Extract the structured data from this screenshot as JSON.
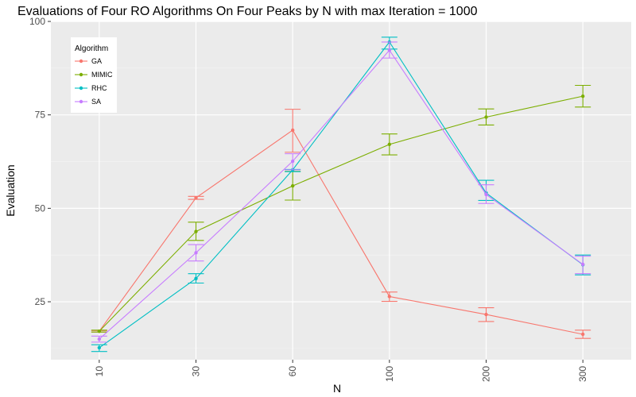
{
  "chart_data": {
    "type": "line",
    "title": "Evaluations of Four RO Algorithms On Four Peaks by N with max Iteration = 1000",
    "xlabel": "N",
    "ylabel": "Evaluation",
    "categories": [
      "10",
      "30",
      "60",
      "100",
      "200",
      "300"
    ],
    "ylim": [
      9.5,
      100
    ],
    "yticks": [
      25,
      50,
      75,
      100
    ],
    "legend": {
      "title": "Algorithm",
      "position": "top-left"
    },
    "series": [
      {
        "name": "GA",
        "color": "#F8766D",
        "values": [
          17.1,
          52.8,
          70.9,
          26.4,
          21.6,
          16.3
        ],
        "error_low": [
          16.9,
          52.4,
          65.0,
          25.1,
          19.7,
          15.2
        ],
        "error_high": [
          17.3,
          53.2,
          76.5,
          27.6,
          23.4,
          17.4
        ]
      },
      {
        "name": "MIMIC",
        "color": "#7CAE00",
        "values": [
          17.1,
          43.8,
          56.0,
          67.1,
          74.4,
          80.0
        ],
        "error_low": [
          16.9,
          41.4,
          52.2,
          64.3,
          72.3,
          77.1
        ],
        "error_high": [
          17.4,
          46.3,
          59.9,
          69.9,
          76.6,
          82.9
        ]
      },
      {
        "name": "RHC",
        "color": "#00BFC4",
        "values": [
          12.7,
          31.2,
          60.3,
          94.5,
          54.1,
          34.9
        ],
        "error_low": [
          11.7,
          30.0,
          59.8,
          92.6,
          52.1,
          32.2
        ],
        "error_high": [
          13.5,
          32.5,
          60.4,
          95.8,
          57.5,
          37.5
        ]
      },
      {
        "name": "SA",
        "color": "#C77CFF",
        "values": [
          15.0,
          38.1,
          62.6,
          92.3,
          53.7,
          35.0
        ],
        "error_low": [
          14.2,
          35.9,
          60.3,
          90.2,
          51.3,
          32.5
        ],
        "error_high": [
          15.8,
          40.3,
          64.6,
          94.5,
          56.3,
          37.2
        ]
      }
    ]
  }
}
